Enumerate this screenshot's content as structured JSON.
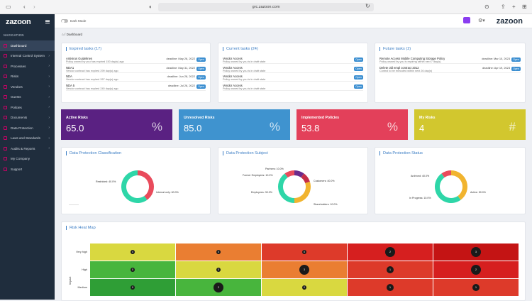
{
  "browser": {
    "url": "grc.zazoon.com"
  },
  "app": {
    "logo": "zazoon",
    "dark_mode_label": "Dark Mode"
  },
  "nav": {
    "header": "NAVIGATION",
    "items": [
      {
        "label": "Dashboard"
      },
      {
        "label": "Internal Control System"
      },
      {
        "label": "Processes"
      },
      {
        "label": "Risks"
      },
      {
        "label": "Vendors"
      },
      {
        "label": "Guests"
      },
      {
        "label": "Policies"
      },
      {
        "label": "Documents"
      },
      {
        "label": "Data Protection"
      },
      {
        "label": "Laws and Standards"
      },
      {
        "label": "Audits & Reports"
      },
      {
        "label": "My Company"
      },
      {
        "label": "Support"
      }
    ]
  },
  "breadcrumb": "Dashboard",
  "expired": {
    "title": "Expired tasks (17)",
    "items": [
      {
        "name": "Antivirus Guidelines",
        "desc": "Policy owned by you has expired 150 day(s) ago",
        "deadline": "deadline: May 26, 2022",
        "btn": "Open"
      },
      {
        "name": "NDA1",
        "desc": "Vendor contract has expired 299 day(s) ago",
        "deadline": "deadline: May 31, 2022",
        "btn": "Open"
      },
      {
        "name": "NDA",
        "desc": "Vendor contract has expired 267 day(s) ago",
        "deadline": "deadline: Jun 28, 2022",
        "btn": "Open"
      },
      {
        "name": "NDA 5",
        "desc": "Vendor contract has expired 240 day(s) ago",
        "deadline": "deadline: Jul 26, 2022",
        "btn": "Open"
      }
    ]
  },
  "current": {
    "title": "Current tasks (24)",
    "items": [
      {
        "name": "Vendor Access",
        "desc": "Policy owned by you is in draft state",
        "btn": "Open"
      },
      {
        "name": "Vendor Access",
        "desc": "Policy owned by you is in draft state",
        "btn": "Open"
      },
      {
        "name": "Vendor Access",
        "desc": "Policy owned by you is in draft state",
        "btn": "Open"
      },
      {
        "name": "Vendor Access",
        "desc": "Policy owned by you is in draft state",
        "btn": "Open"
      }
    ]
  },
  "future": {
    "title": "Future tasks (2)",
    "items": [
      {
        "name": "Remote Access Mobile Computing Storage Policy",
        "desc": "Policy owned by you is expiring within next 7 day(s)",
        "deadline": "deadline: Mar 10, 2023",
        "btn": "Open"
      },
      {
        "name": "Delete old empl contract 2012",
        "desc": "Control to be executed within next 26 day(s)",
        "deadline": "deadline: Apr 19, 2023",
        "btn": "Open"
      }
    ]
  },
  "kpis": [
    {
      "label": "Active Risks",
      "value": "65.0",
      "icon": "%",
      "color": "#5a2182"
    },
    {
      "label": "Unresolved Risks",
      "value": "85.0",
      "icon": "%",
      "color": "#3f93cf"
    },
    {
      "label": "Implemented Policies",
      "value": "53.8",
      "icon": "%",
      "color": "#e3405a"
    },
    {
      "label": "My Risks",
      "value": "4",
      "icon": "#",
      "color": "#d2c72e"
    }
  ],
  "dp_class": {
    "title": "Data Protection Classification",
    "labels": [
      "Restricted: 40.0%",
      "Internal only: 60.0%"
    ]
  },
  "dp_subject": {
    "title": "Data Protection Subject",
    "labels": [
      "Partners: 10.0%",
      "Former Employees: 10.0%",
      "Employees: 30.0%",
      "Customers: 40.0%",
      "Shareholders: 10.0%"
    ]
  },
  "dp_status": {
    "title": "Data Protection Status",
    "labels": [
      "Archived: 40.0%",
      "Active: 50.0%",
      "In Progress: 10.0%"
    ]
  },
  "chart_data": [
    {
      "type": "pie",
      "title": "Data Protection Classification",
      "categories": [
        "Restricted",
        "Internal only"
      ],
      "values": [
        40.0,
        60.0
      ],
      "colors": [
        "#e94b5c",
        "#2ed6a8"
      ]
    },
    {
      "type": "pie",
      "title": "Data Protection Subject",
      "categories": [
        "Partners",
        "Former Employees",
        "Employees",
        "Customers",
        "Shareholders"
      ],
      "values": [
        10.0,
        10.0,
        30.0,
        40.0,
        10.0
      ],
      "colors": [
        "#6b2a8c",
        "#c42d47",
        "#f1b42f",
        "#2ed6a8",
        "#e94b5c"
      ]
    },
    {
      "type": "pie",
      "title": "Data Protection Status",
      "categories": [
        "Archived",
        "Active",
        "In Progress"
      ],
      "values": [
        40.0,
        50.0,
        10.0
      ],
      "colors": [
        "#f1b42f",
        "#2ed6a8",
        "#e94b5c"
      ]
    }
  ],
  "heat": {
    "title": "Risk Heat Map",
    "ylabel": "Impact",
    "rows": [
      {
        "label": "Very high",
        "cells": [
          {
            "c": "#d9d840",
            "v": "0"
          },
          {
            "c": "#ea7e32",
            "v": "0"
          },
          {
            "c": "#dd3a2a",
            "v": "0"
          },
          {
            "c": "#d61f1f",
            "v": "2"
          },
          {
            "c": "#c41414",
            "v": "3"
          }
        ]
      },
      {
        "label": "High",
        "cells": [
          {
            "c": "#48b53d",
            "v": "0"
          },
          {
            "c": "#d9d840",
            "v": "0"
          },
          {
            "c": "#ea7e32",
            "v": "3"
          },
          {
            "c": "#dd3a2a",
            "v": "1"
          },
          {
            "c": "#d61f1f",
            "v": "2"
          }
        ]
      },
      {
        "label": "Medium",
        "cells": [
          {
            "c": "#2f9e36",
            "v": "0"
          },
          {
            "c": "#48b53d",
            "v": "2"
          },
          {
            "c": "#d9d840",
            "v": "0"
          },
          {
            "c": "#dd3a2a",
            "v": "1"
          },
          {
            "c": "#dd3a2a",
            "v": "1"
          }
        ]
      }
    ]
  }
}
